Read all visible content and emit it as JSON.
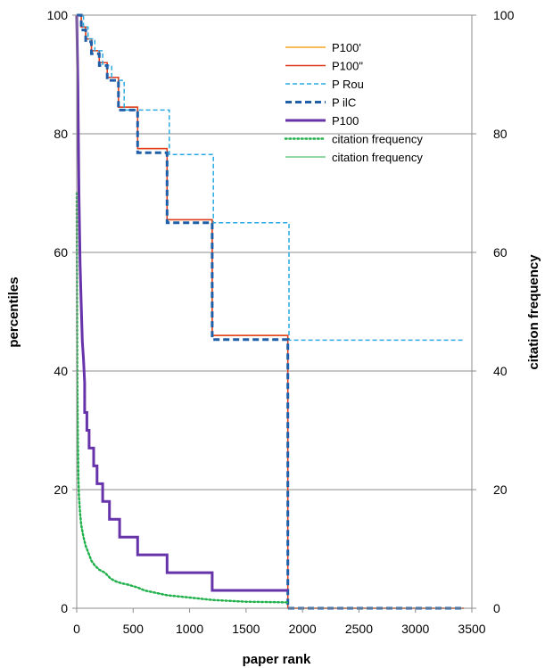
{
  "chart_data": {
    "type": "line",
    "xlabel": "paper rank",
    "ylabel": "percentiles",
    "y2label": "citation frequency",
    "xlim": [
      0,
      3500
    ],
    "ylim": [
      0,
      100
    ],
    "y2lim": [
      0,
      100
    ],
    "x_ticks": [
      "0",
      "500",
      "1000",
      "1500",
      "2000",
      "2500",
      "3000",
      "3500"
    ],
    "y_ticks": [
      "0",
      "20",
      "40",
      "60",
      "80",
      "100"
    ],
    "y2_ticks": [
      "0",
      "20",
      "40",
      "60",
      "80",
      "100"
    ],
    "grid": "horizontal",
    "legend_position": "top-right",
    "series": [
      {
        "name": "P100'",
        "color": "#f5a623",
        "style": "solid",
        "width": 1.5,
        "x": [
          0,
          40,
          40,
          80,
          80,
          130,
          130,
          200,
          200,
          270,
          270,
          370,
          370,
          540,
          540,
          800,
          800,
          1200,
          1200,
          1870,
          1870,
          3430
        ],
        "y": [
          100,
          100,
          98,
          98,
          96,
          96,
          94,
          94,
          92,
          92,
          89.5,
          89.5,
          84.5,
          84.5,
          77.5,
          77.5,
          65.5,
          65.5,
          46,
          46,
          0,
          0
        ]
      },
      {
        "name": "P100\"",
        "color": "#e03a1e",
        "style": "solid",
        "width": 1.5,
        "x": [
          0,
          40,
          40,
          80,
          80,
          130,
          130,
          200,
          200,
          270,
          270,
          370,
          370,
          540,
          540,
          800,
          800,
          1200,
          1200,
          1870,
          1870,
          3430
        ],
        "y": [
          100,
          100,
          98,
          98,
          96,
          96,
          94,
          94,
          92,
          92,
          89.5,
          89.5,
          84.5,
          84.5,
          77.5,
          77.5,
          65.5,
          65.5,
          46,
          46,
          0,
          0
        ]
      },
      {
        "name": "P Rou",
        "color": "#29abe2",
        "style": "dashed",
        "width": 1.5,
        "x": [
          0,
          60,
          60,
          100,
          100,
          160,
          160,
          230,
          230,
          310,
          310,
          420,
          420,
          600,
          600,
          820,
          820,
          1210,
          1210,
          1880,
          1880,
          3430
        ],
        "y": [
          100,
          100,
          98,
          98,
          96,
          96,
          94,
          94,
          91.5,
          91.5,
          89,
          89,
          84,
          84,
          84,
          84,
          76.5,
          76.5,
          65,
          65,
          45.2,
          45.2
        ]
      },
      {
        "name": "P ilC",
        "color": "#1f5fa8",
        "style": "dashed",
        "width": 3,
        "x": [
          0,
          40,
          40,
          80,
          80,
          130,
          130,
          200,
          200,
          270,
          270,
          370,
          370,
          540,
          540,
          800,
          800,
          1200,
          1200,
          1870,
          1870,
          3430
        ],
        "y": [
          100,
          100,
          97.5,
          97.5,
          95.5,
          95.5,
          93.5,
          93.5,
          91.5,
          91.5,
          89,
          89,
          84,
          84,
          76.8,
          76.8,
          65,
          65,
          45.3,
          45.3,
          0,
          0
        ]
      },
      {
        "name": "P100",
        "color": "#6633aa",
        "style": "solid",
        "width": 3,
        "x": [
          0,
          10,
          20,
          30,
          40,
          50,
          60,
          70,
          70,
          90,
          90,
          110,
          110,
          150,
          150,
          180,
          180,
          230,
          230,
          290,
          290,
          380,
          380,
          540,
          540,
          800,
          800,
          1200,
          1200,
          1870
        ],
        "y": [
          100,
          88,
          70,
          58,
          51,
          45,
          42,
          38,
          33,
          33,
          30,
          30,
          27,
          27,
          24,
          24,
          21,
          21,
          18,
          18,
          15,
          15,
          12,
          12,
          9,
          9,
          6,
          6,
          3,
          3
        ]
      },
      {
        "name": "citation frequency",
        "color": "#22b14c",
        "style": "dotted",
        "width": 2.5,
        "x": [
          0,
          5,
          10,
          15,
          20,
          30,
          40,
          60,
          80,
          100,
          130,
          160,
          200,
          250,
          300,
          350,
          400,
          450,
          540,
          600,
          700,
          800,
          1000,
          1200,
          1500,
          1870
        ],
        "y": [
          70,
          40,
          28,
          22,
          19,
          16,
          14,
          12,
          10.5,
          9.5,
          8,
          7.2,
          6.5,
          6,
          5,
          4.5,
          4.2,
          4,
          3.5,
          3,
          2.6,
          2.2,
          1.8,
          1.4,
          1.1,
          1
        ]
      },
      {
        "name": "citation frequency",
        "color": "#22b14c",
        "style": "solid",
        "width": 1,
        "x": [
          0,
          5,
          10,
          15,
          20,
          30,
          40,
          60,
          80,
          100,
          130,
          160,
          200,
          250,
          300,
          350,
          400,
          450,
          540,
          600,
          700,
          800,
          1000,
          1200,
          1500,
          1870
        ],
        "y": [
          70,
          40,
          28,
          22,
          19,
          16,
          14,
          12,
          10.5,
          9.5,
          8,
          7.2,
          6.5,
          6,
          5,
          4.5,
          4.2,
          4,
          3.5,
          3,
          2.6,
          2.2,
          1.8,
          1.4,
          1.1,
          1
        ]
      }
    ]
  }
}
